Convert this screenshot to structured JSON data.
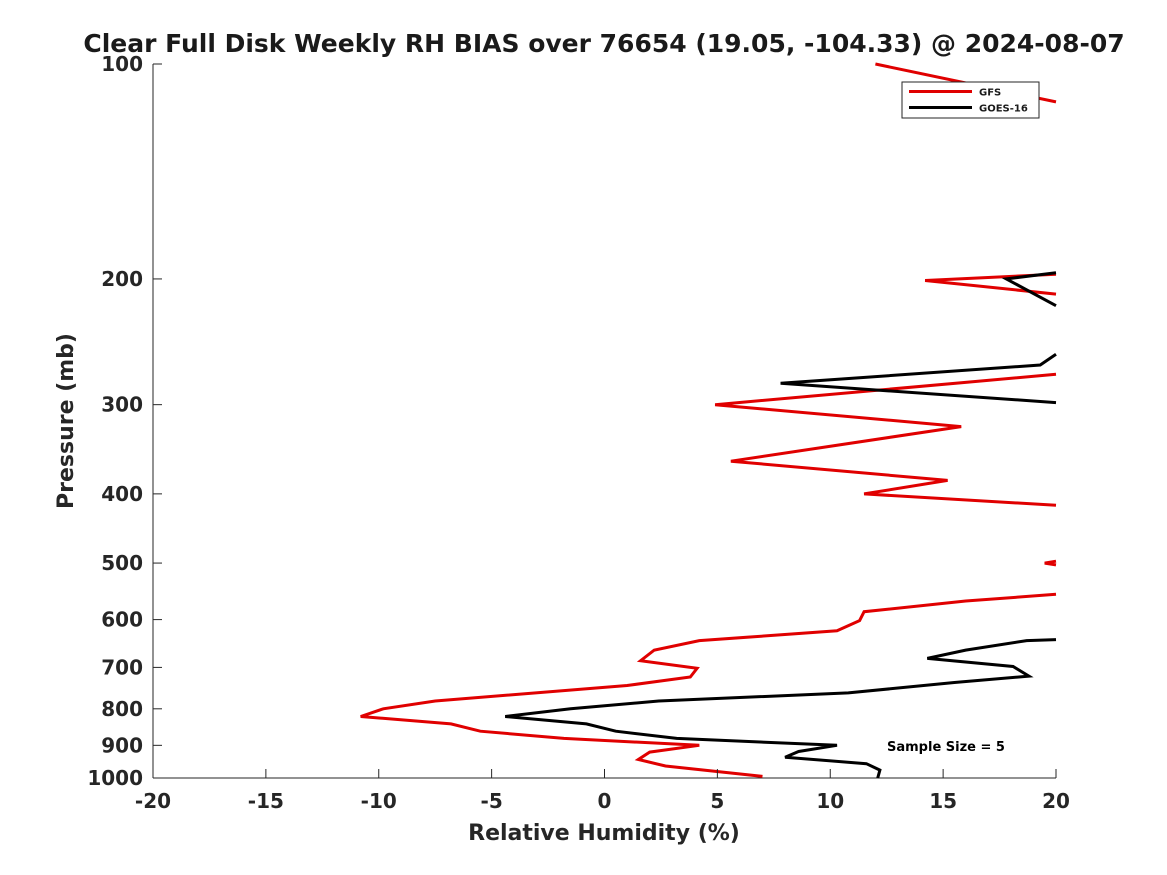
{
  "chart_data": {
    "type": "line",
    "title": "Clear Full Disk Weekly RH BIAS over 76654 (19.05, -104.33) @ 2024-08-07",
    "xlabel": "Relative Humidity (%)",
    "ylabel": "Pressure (mb)",
    "xlim": [
      -20,
      20
    ],
    "ylim": [
      100,
      1000
    ],
    "yscale": "log",
    "yreversed": true,
    "xticks": [
      -20,
      -15,
      -10,
      -5,
      0,
      5,
      10,
      15,
      20
    ],
    "xtick_labels": [
      "-20",
      "-15",
      "-10",
      "-5",
      "0",
      "5",
      "10",
      "15",
      "20"
    ],
    "yticks": [
      100,
      200,
      300,
      400,
      500,
      600,
      700,
      800,
      900,
      1000
    ],
    "ytick_labels": [
      "100",
      "200",
      "300",
      "400",
      "500",
      "600",
      "700",
      "800",
      "900",
      "1000"
    ],
    "grid": false,
    "legend_position": "top-right",
    "annotation": "Sample Size = 5",
    "series": [
      {
        "name": "GFS",
        "color": "#e00000",
        "segments": [
          [
            [
              12,
              100
            ],
            [
              20,
              113
            ]
          ],
          [
            [
              20,
              197
            ],
            [
              14.2,
              201
            ],
            [
              20,
              210
            ]
          ],
          [
            [
              20,
              272
            ],
            [
              4.9,
              300
            ],
            [
              15.8,
              322
            ],
            [
              5.6,
              360
            ],
            [
              15.2,
              383
            ],
            [
              11.5,
              400
            ],
            [
              20,
              415
            ]
          ],
          [
            [
              20,
              497
            ],
            [
              19.5,
              500
            ],
            [
              20,
              503
            ]
          ],
          [
            [
              20,
              553
            ],
            [
              16,
              565
            ],
            [
              11.5,
              585
            ],
            [
              11.3,
              602
            ],
            [
              10.3,
              622
            ],
            [
              4.2,
              642
            ],
            [
              2.2,
              662
            ],
            [
              1.6,
              685
            ],
            [
              4.1,
              702
            ],
            [
              3.8,
              722
            ],
            [
              1.0,
              742
            ],
            [
              -7.5,
              780
            ],
            [
              -9.8,
              800
            ],
            [
              -10.8,
              820
            ],
            [
              -6.8,
              840
            ],
            [
              -5.5,
              860
            ],
            [
              -1.8,
              880
            ],
            [
              4.2,
              900
            ],
            [
              2.0,
              920
            ],
            [
              1.5,
              942
            ],
            [
              2.7,
              962
            ],
            [
              7.0,
              995
            ]
          ]
        ]
      },
      {
        "name": "GOES-16",
        "color": "#000000",
        "segments": [
          [
            [
              20,
              196
            ],
            [
              17.8,
              200
            ],
            [
              20,
              218
            ]
          ],
          [
            [
              20,
              255
            ],
            [
              19.3,
              264
            ],
            [
              7.8,
              280
            ],
            [
              20,
              298
            ]
          ],
          [
            [
              20,
              640
            ],
            [
              18.7,
              642
            ],
            [
              16,
              662
            ],
            [
              14.3,
              680
            ],
            [
              18.1,
              698
            ],
            [
              18.8,
              720
            ],
            [
              15.5,
              735
            ],
            [
              10.8,
              760
            ],
            [
              2.4,
              780
            ],
            [
              -1.5,
              800
            ],
            [
              -4.4,
              820
            ],
            [
              -0.8,
              840
            ],
            [
              0.5,
              860
            ],
            [
              3.2,
              880
            ],
            [
              10.3,
              900
            ],
            [
              8.6,
              918
            ],
            [
              8.0,
              935
            ],
            [
              11.6,
              955
            ],
            [
              12.2,
              975
            ],
            [
              12.1,
              1000
            ]
          ]
        ]
      }
    ]
  }
}
